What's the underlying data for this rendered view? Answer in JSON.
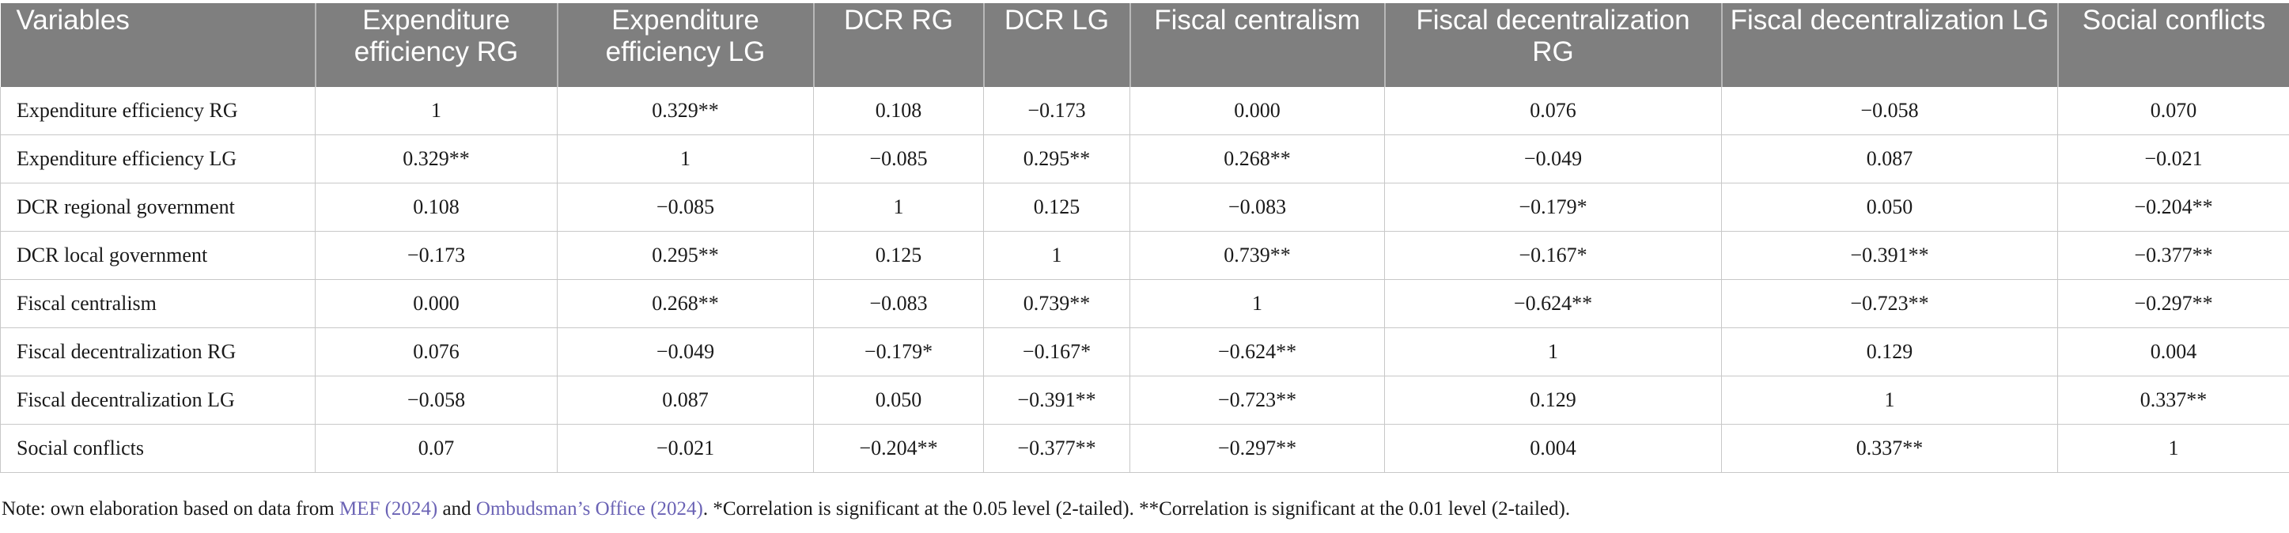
{
  "table": {
    "headers": [
      "Variables",
      "Expenditure efficiency RG",
      "Expenditure efficiency LG",
      "DCR RG",
      "DCR LG",
      "Fiscal centralism",
      "Fiscal decentralization RG",
      "Fiscal decentralization LG",
      "Social conflicts"
    ],
    "rows": [
      [
        "Expenditure efficiency RG",
        "1",
        "0.329**",
        "0.108",
        "−0.173",
        "0.000",
        "0.076",
        "−0.058",
        "0.070"
      ],
      [
        "Expenditure efficiency LG",
        "0.329**",
        "1",
        "−0.085",
        "0.295**",
        "0.268**",
        "−0.049",
        "0.087",
        "−0.021"
      ],
      [
        "DCR regional government",
        "0.108",
        "−0.085",
        "1",
        "0.125",
        "−0.083",
        "−0.179*",
        "0.050",
        "−0.204**"
      ],
      [
        "DCR local government",
        "−0.173",
        "0.295**",
        "0.125",
        "1",
        "0.739**",
        "−0.167*",
        "−0.391**",
        "−0.377**"
      ],
      [
        "Fiscal centralism",
        "0.000",
        "0.268**",
        "−0.083",
        "0.739**",
        "1",
        "−0.624**",
        "−0.723**",
        "−0.297**"
      ],
      [
        "Fiscal decentralization RG",
        "0.076",
        "−0.049",
        "−0.179*",
        "−0.167*",
        "−0.624**",
        "1",
        "0.129",
        "0.004"
      ],
      [
        "Fiscal decentralization LG",
        "−0.058",
        "0.087",
        "0.050",
        "−0.391**",
        "−0.723**",
        "0.129",
        "1",
        "0.337**"
      ],
      [
        "Social conflicts",
        "0.07",
        "−0.021",
        "−0.204**",
        "−0.377**",
        "−0.297**",
        "0.004",
        "0.337**",
        "1"
      ]
    ]
  },
  "note": {
    "prefix": "Note: own elaboration based on data from ",
    "link1": "MEF (2024)",
    "mid": " and ",
    "link2": "Ombudsman’s Office (2024)",
    "suffix": ". *Correlation is significant at the 0.05 level (2-tailed). **Correlation is significant at the 0.01 level (2-tailed)."
  }
}
